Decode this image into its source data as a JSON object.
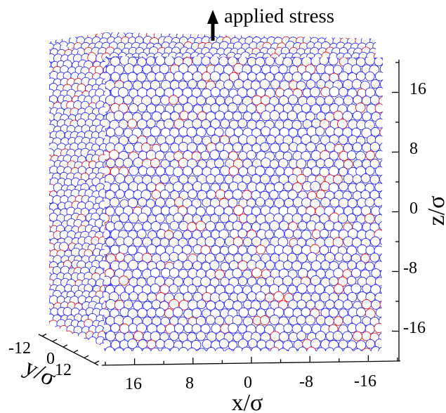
{
  "annotation": {
    "text": "applied stress"
  },
  "axes": {
    "z": {
      "title": "z/σ",
      "ticks": [
        "16",
        "8",
        "0",
        "-8",
        "-16"
      ]
    },
    "x": {
      "title": "x/σ",
      "ticks": [
        "16",
        "8",
        "0",
        "-8",
        "-16"
      ]
    },
    "y": {
      "title": "y/σ",
      "ticks": [
        "-12",
        "0",
        "12"
      ]
    }
  },
  "colors": {
    "majority_particles": "#2b2bff",
    "minority_particles": "#e8161b",
    "axis_ink": "#000000"
  }
}
